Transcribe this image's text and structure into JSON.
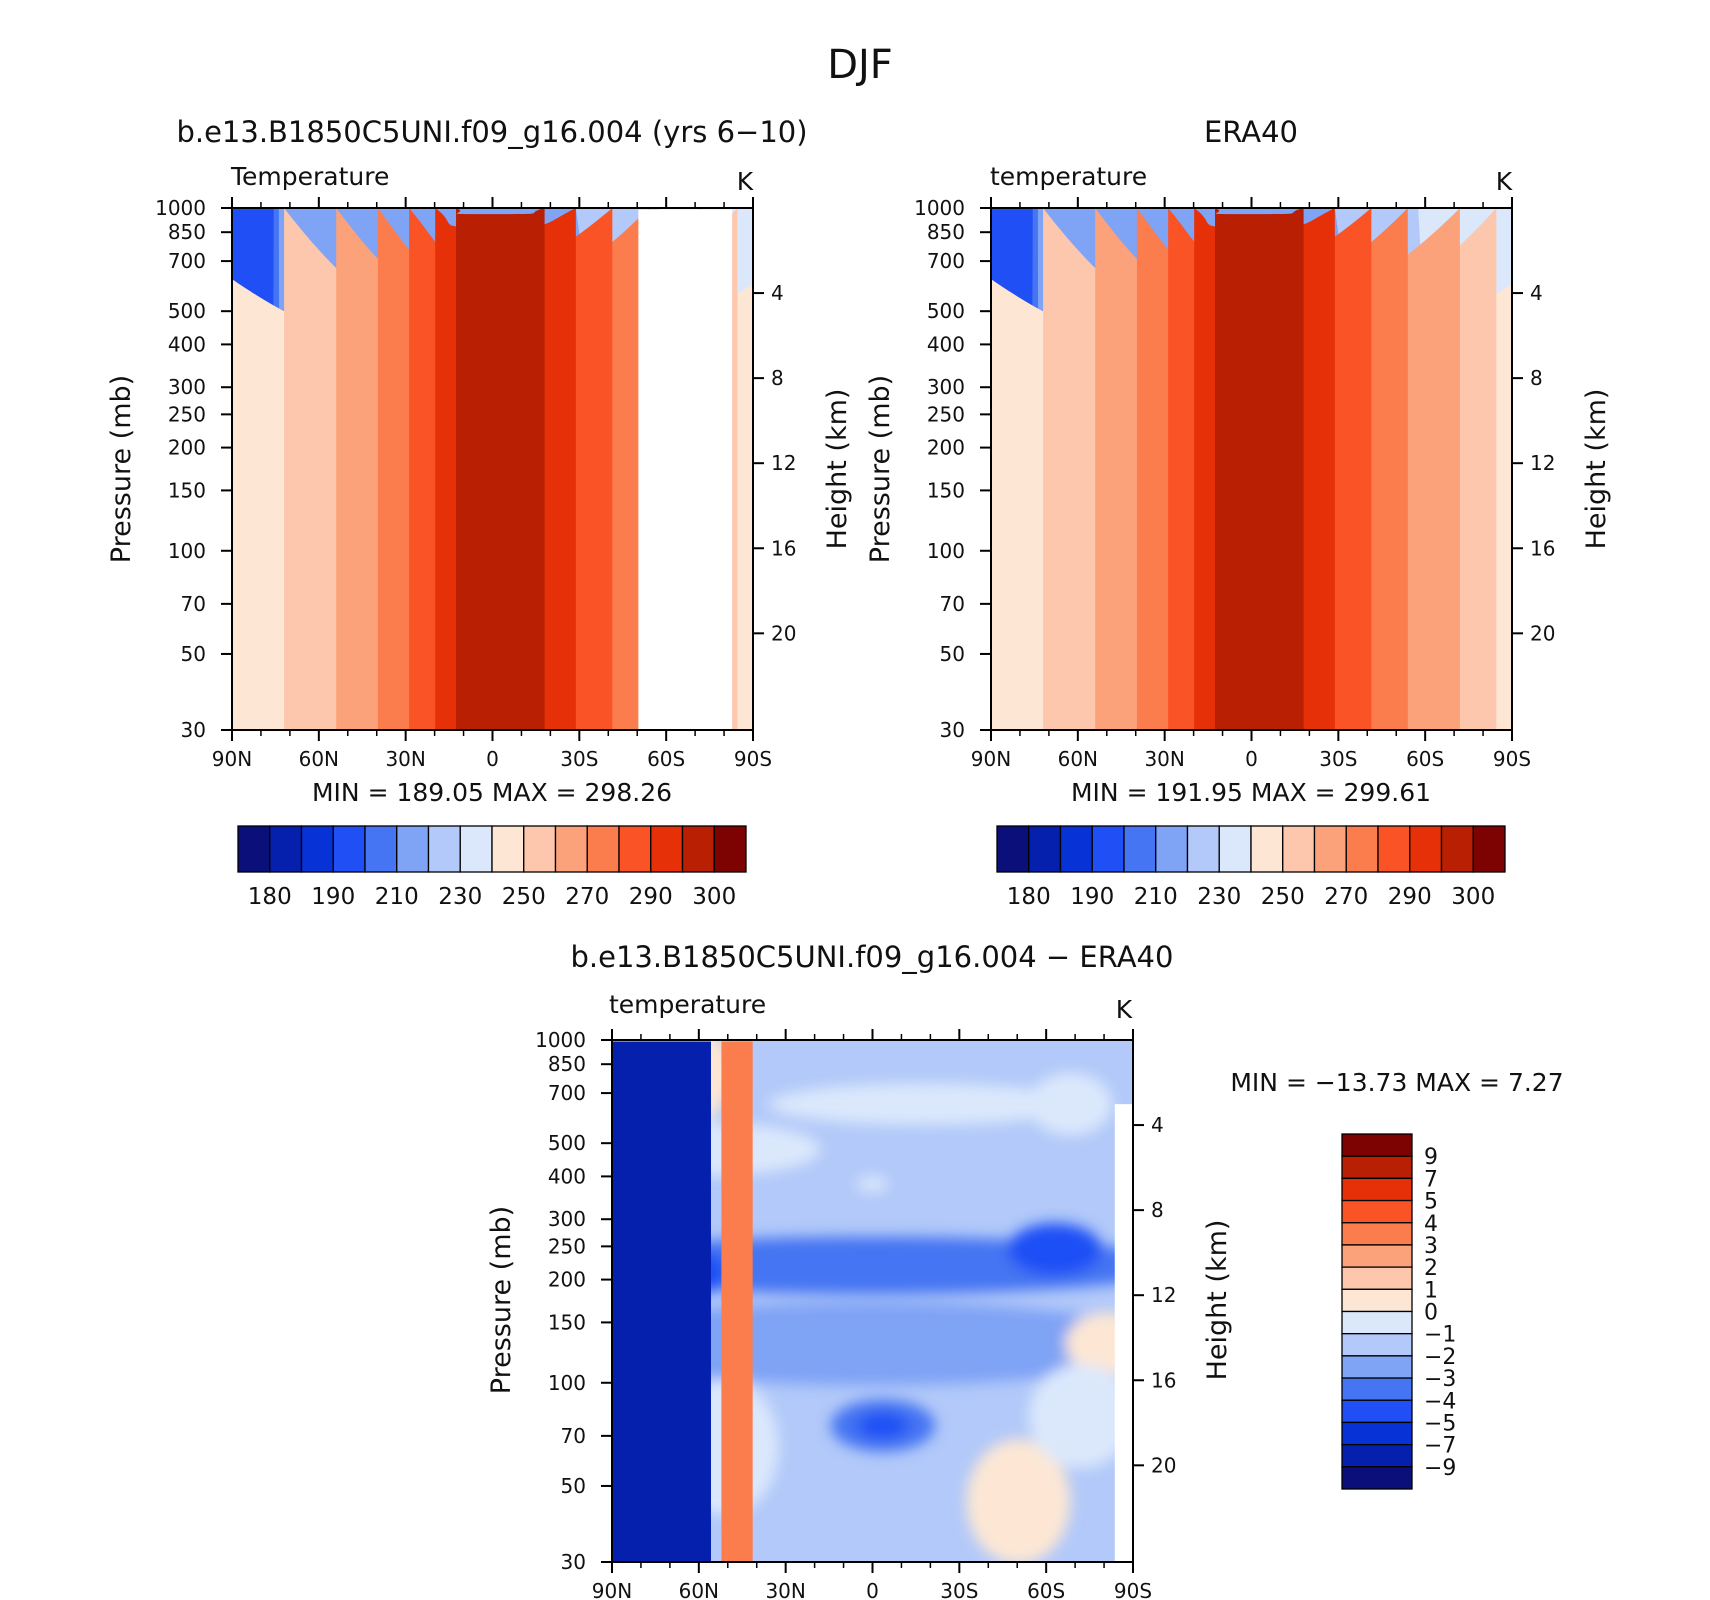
{
  "title": "DJF",
  "colors": {
    "abs_levels": [
      "#0a0f7a",
      "#0520ad",
      "#0733d6",
      "#1f4ff5",
      "#4575f2",
      "#7fa3f5",
      "#b2c9f9",
      "#dbe8fc",
      "#fde7d4",
      "#fcc7ad",
      "#fba27b",
      "#fb7d4e",
      "#fa5326",
      "#e63008",
      "#b81f03",
      "#7d0202"
    ],
    "diff_levels": [
      "#0a0f7a",
      "#0520ad",
      "#0733d6",
      "#1f4ff5",
      "#4575f2",
      "#7fa3f5",
      "#b2c9f9",
      "#dbe8fc",
      "#fde7d4",
      "#fcc7ad",
      "#fba27b",
      "#fb7d4e",
      "#fa5326",
      "#e63008",
      "#b81f03",
      "#7d0202"
    ]
  },
  "chart_data": [
    {
      "type": "heatmap",
      "title": "b.e13.B1850C5UNI.f09_g16.004 (yrs  6−10)",
      "subtitle": "Temperature",
      "units": "K",
      "ylabel": "Pressure (mb)",
      "y2label": "Height (km)",
      "x_ticks": [
        "90N",
        "60N",
        "30N",
        "0",
        "30S",
        "60S",
        "90S"
      ],
      "y_ticks": [
        "30",
        "50",
        "70",
        "100",
        "150",
        "200",
        "250",
        "300",
        "400",
        "500",
        "700",
        "850",
        "1000"
      ],
      "y2_ticks": [
        "20",
        "16",
        "12",
        "8",
        "4"
      ],
      "y_scale": "log",
      "ylim": [
        1000,
        30
      ],
      "xlim": [
        "90N",
        "90S"
      ],
      "stats": "MIN =  189.05   MAX =  298.26",
      "min": 189.05,
      "max": 298.26,
      "colorbar_labels": [
        "180",
        "190",
        "210",
        "230",
        "250",
        "270",
        "290",
        "300"
      ],
      "contour_levels": [
        180,
        190,
        200,
        210,
        220,
        230,
        240,
        250,
        260,
        270,
        280,
        290,
        295,
        300
      ]
    },
    {
      "type": "heatmap",
      "title": "ERA40",
      "subtitle": "temperature",
      "units": "K",
      "ylabel": "Pressure (mb)",
      "y2label": "Height (km)",
      "x_ticks": [
        "90N",
        "60N",
        "30N",
        "0",
        "30S",
        "60S",
        "90S"
      ],
      "y_ticks": [
        "30",
        "50",
        "70",
        "100",
        "150",
        "200",
        "250",
        "300",
        "400",
        "500",
        "700",
        "850",
        "1000"
      ],
      "y2_ticks": [
        "20",
        "16",
        "12",
        "8",
        "4"
      ],
      "y_scale": "log",
      "ylim": [
        1000,
        30
      ],
      "xlim": [
        "90N",
        "90S"
      ],
      "stats": "MIN =  191.95   MAX =  299.61",
      "min": 191.95,
      "max": 299.61,
      "colorbar_labels": [
        "180",
        "190",
        "210",
        "230",
        "250",
        "270",
        "290",
        "300"
      ],
      "contour_levels": [
        180,
        190,
        200,
        210,
        220,
        230,
        240,
        250,
        260,
        270,
        280,
        290,
        295,
        300
      ]
    },
    {
      "type": "heatmap",
      "title": "b.e13.B1850C5UNI.f09_g16.004 − ERA40",
      "subtitle": "temperature",
      "units": "K",
      "ylabel": "Pressure (mb)",
      "y2label": "Height (km)",
      "x_ticks": [
        "90N",
        "60N",
        "30N",
        "0",
        "30S",
        "60S",
        "90S"
      ],
      "y_ticks": [
        "30",
        "50",
        "70",
        "100",
        "150",
        "200",
        "250",
        "300",
        "400",
        "500",
        "700",
        "850",
        "1000"
      ],
      "y2_ticks": [
        "20",
        "16",
        "12",
        "8",
        "4"
      ],
      "y_scale": "log",
      "ylim": [
        1000,
        30
      ],
      "xlim": [
        "90N",
        "90S"
      ],
      "stats": "MIN = −13.73   MAX =    7.27",
      "min": -13.73,
      "max": 7.27,
      "colorbar_labels": [
        "9",
        "7",
        "5",
        "4",
        "3",
        "2",
        "1",
        "0",
        "−1",
        "−2",
        "−3",
        "−4",
        "−5",
        "−7",
        "−9"
      ],
      "contour_levels": [
        -9,
        -7,
        -5,
        -4,
        -3,
        -2,
        -1,
        0,
        1,
        2,
        3,
        4,
        5,
        7,
        9
      ]
    }
  ]
}
